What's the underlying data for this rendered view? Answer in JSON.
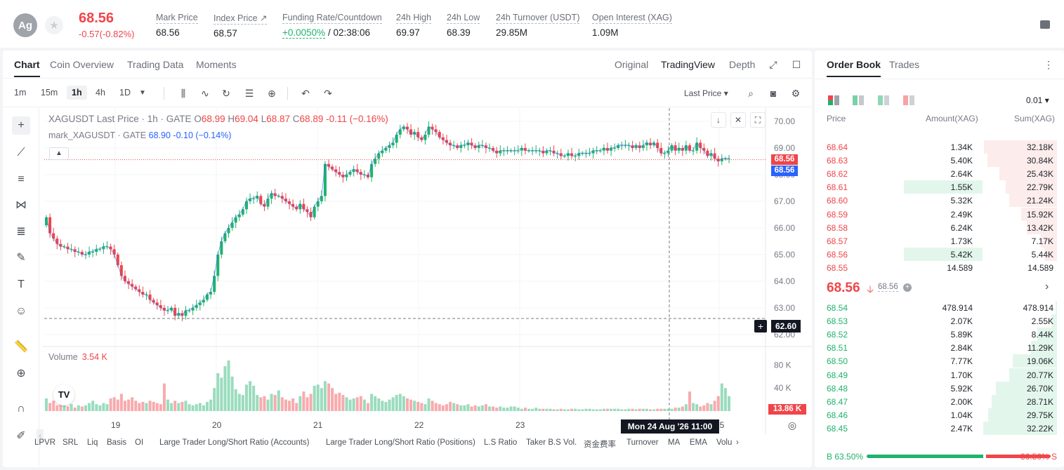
{
  "ticker": {
    "symbol_badge": "Ag",
    "star_icon": "star-icon",
    "last_price": "68.56",
    "change": "-0.57(-0.82%)",
    "stats": [
      {
        "label": "Mark Price",
        "value": "68.56"
      },
      {
        "label": "Index Price ↗",
        "value": "68.57"
      },
      {
        "label": "Funding Rate/Countdown",
        "value_pos": "+0.0050%",
        "value": " / 02:38:06"
      },
      {
        "label": "24h High",
        "value": "69.97"
      },
      {
        "label": "24h Low",
        "value": "68.39"
      },
      {
        "label": "24h Turnover (USDT)",
        "value": "29.85M"
      },
      {
        "label": "Open Interest (XAG)",
        "value": "1.09M"
      }
    ]
  },
  "chart_tabs": [
    "Chart",
    "Coin Overview",
    "Trading Data",
    "Moments"
  ],
  "view_tabs": [
    "Original",
    "TradingView",
    "Depth"
  ],
  "timeframes": [
    "1m",
    "15m",
    "1h",
    "4h",
    "1D"
  ],
  "price_source": "Last Price",
  "legend": {
    "main": "XAGUSDT Last Price · 1h · GATE",
    "o_label": "O",
    "o": "68.99",
    "h_label": "H",
    "h": "69.04",
    "l_label": "L",
    "l": "68.87",
    "c_label": "C",
    "c": "68.89",
    "chg": "-0.11 (−0.16%)",
    "mark": "mark_XAGUSDT · GATE",
    "mark_val": "68.90",
    "mark_chg": "-0.10 (−0.14%)"
  },
  "volume_legend": {
    "label": "Volume",
    "value": "3.54 K"
  },
  "tags": {
    "last": "68.56",
    "mark": "68.56",
    "crosshair_price": "62.60",
    "crosshair_time": "Mon 24 Aug '26   11:00",
    "volume_last": "13.86 K"
  },
  "indicators": [
    "LPVR",
    "SRL",
    "Liq",
    "Basis",
    "OI",
    "Large Trader Long/Short Ratio (Accounts)",
    "Large Trader Long/Short Ratio (Positions)",
    "L.S Ratio",
    "Taker B.S Vol.",
    "资金费率",
    "Turnover",
    "MA",
    "EMA",
    "Volu"
  ],
  "chart_data": {
    "type": "candlestick",
    "title": "XAGUSDT Last Price · 1h · GATE",
    "ylim": [
      61.6,
      70.5
    ],
    "price_ticks": [
      "70.00",
      "69.00",
      "68.00",
      "67.00",
      "66.00",
      "65.00",
      "64.00",
      "63.00",
      "62.00"
    ],
    "volume_ticks": [
      "80 K",
      "40 K"
    ],
    "x_ticks": [
      "19",
      "20",
      "21",
      "22",
      "23",
      "25"
    ],
    "closes": [
      66.4,
      65.8,
      65.6,
      65.4,
      65.3,
      65.3,
      65.2,
      65.2,
      65.1,
      65.1,
      65.0,
      65.0,
      65.1,
      65.1,
      65.2,
      65.2,
      65.3,
      65.3,
      65.2,
      65.0,
      64.6,
      64.2,
      64.0,
      63.9,
      63.8,
      63.7,
      63.6,
      63.5,
      63.5,
      63.3,
      63.2,
      63.1,
      63.0,
      62.9,
      62.9,
      63.0,
      62.7,
      62.8,
      62.7,
      62.9,
      62.9,
      63.0,
      63.1,
      63.2,
      63.3,
      63.5,
      63.6,
      64.2,
      65.0,
      65.5,
      65.8,
      66.0,
      66.2,
      66.4,
      66.5,
      66.7,
      67.0,
      67.1,
      67.1,
      67.2,
      66.9,
      66.8,
      67.1,
      67.3,
      67.2,
      67.2,
      67.1,
      67.0,
      66.9,
      66.8,
      66.7,
      66.9,
      66.7,
      66.6,
      66.4,
      66.8,
      67.0,
      67.2,
      68.4,
      68.3,
      68.2,
      68.1,
      68.0,
      67.9,
      68.0,
      68.1,
      68.2,
      68.1,
      68.0,
      68.0,
      67.9,
      68.4,
      68.6,
      68.8,
      68.9,
      69.0,
      69.1,
      69.2,
      69.5,
      69.7,
      69.8,
      69.7,
      69.5,
      69.6,
      69.4,
      69.3,
      69.5,
      69.8,
      69.7,
      69.6,
      69.4,
      69.3,
      69.2,
      69.1,
      69.1,
      69.0,
      69.1,
      69.1,
      69.2,
      69.1,
      69.0,
      69.1,
      69.1,
      69.0,
      69.0,
      68.9,
      68.8,
      68.9,
      68.9,
      68.9,
      68.9,
      68.9,
      68.9,
      69.0,
      68.9,
      68.9,
      68.9,
      68.9,
      68.9,
      68.8,
      68.9,
      68.9,
      68.8,
      68.8,
      68.7,
      68.7,
      68.8,
      68.7,
      68.7,
      68.8,
      68.8,
      68.8,
      68.8,
      68.9,
      68.9,
      68.9,
      69.0,
      68.9,
      69.0,
      69.0,
      69.1,
      69.1,
      69.1,
      69.1,
      69.0,
      69.1,
      69.0,
      69.1,
      69.2,
      69.1,
      69.2,
      69.0,
      68.8,
      68.8,
      68.9,
      69.1,
      68.9,
      69.0,
      68.9,
      69.1,
      68.9,
      68.9,
      69.2,
      69.0,
      68.9,
      68.7,
      68.8,
      68.6,
      68.5,
      68.6,
      68.6,
      68.6
    ],
    "volumes_k": [
      22,
      14,
      18,
      10,
      12,
      14,
      8,
      12,
      6,
      10,
      8,
      10,
      14,
      18,
      12,
      10,
      14,
      12,
      22,
      24,
      20,
      30,
      18,
      20,
      24,
      18,
      14,
      16,
      14,
      18,
      16,
      14,
      12,
      48,
      20,
      14,
      18,
      14,
      16,
      18,
      12,
      10,
      12,
      14,
      10,
      16,
      20,
      40,
      66,
      58,
      78,
      88,
      60,
      38,
      30,
      28,
      46,
      52,
      44,
      28,
      24,
      26,
      20,
      30,
      28,
      36,
      24,
      20,
      18,
      22,
      14,
      26,
      34,
      24,
      30,
      44,
      46,
      40,
      52,
      48,
      40,
      30,
      32,
      28,
      24,
      20,
      22,
      24,
      26,
      20,
      14,
      30,
      26,
      22,
      18,
      16,
      20,
      24,
      28,
      30,
      26,
      22,
      20,
      18,
      16,
      14,
      12,
      22,
      18,
      14,
      12,
      10,
      12,
      16,
      14,
      12,
      10,
      10,
      12,
      8,
      10,
      8,
      10,
      12,
      8,
      8,
      6,
      8,
      6,
      6,
      8,
      8,
      6,
      4,
      6,
      4,
      4,
      6,
      4,
      4,
      4,
      4,
      3,
      3,
      4,
      3,
      3,
      4,
      4,
      3,
      3,
      4,
      4,
      3,
      3,
      3,
      4,
      4,
      4,
      4,
      4,
      3,
      3,
      4,
      4,
      3,
      4,
      4,
      4,
      3,
      3,
      4,
      4,
      4,
      4,
      4,
      6,
      6,
      8,
      12,
      34,
      14,
      12,
      8,
      10,
      14,
      12,
      18,
      26,
      48,
      40,
      26,
      18,
      14
    ]
  },
  "orderbook": {
    "tabs": [
      "Order Book",
      "Trades"
    ],
    "tick": "0.01",
    "columns": [
      "Price",
      "Amount(XAG)",
      "Sum(XAG)"
    ],
    "asks": [
      {
        "p": "68.64",
        "a": "1.34K",
        "s": "32.18K",
        "sum_frac": 0.98,
        "amt_frac": 0
      },
      {
        "p": "68.63",
        "a": "5.40K",
        "s": "30.84K",
        "sum_frac": 0.93,
        "amt_frac": 0
      },
      {
        "p": "68.62",
        "a": "2.64K",
        "s": "25.43K",
        "sum_frac": 0.77,
        "amt_frac": 0
      },
      {
        "p": "68.61",
        "a": "1.55K",
        "s": "22.79K",
        "sum_frac": 0.69,
        "amt_frac": 0.34
      },
      {
        "p": "68.60",
        "a": "5.32K",
        "s": "21.24K",
        "sum_frac": 0.64,
        "amt_frac": 0
      },
      {
        "p": "68.59",
        "a": "2.49K",
        "s": "15.92K",
        "sum_frac": 0.48,
        "amt_frac": 0
      },
      {
        "p": "68.58",
        "a": "6.24K",
        "s": "13.42K",
        "sum_frac": 0.41,
        "amt_frac": 0
      },
      {
        "p": "68.57",
        "a": "1.73K",
        "s": "7.17K",
        "sum_frac": 0.22,
        "amt_frac": 0
      },
      {
        "p": "68.56",
        "a": "5.42K",
        "s": "5.44K",
        "sum_frac": 0.17,
        "amt_frac": 0.34
      },
      {
        "p": "68.55",
        "a": "14.589",
        "s": "14.589",
        "sum_frac": 0,
        "amt_frac": 0
      }
    ],
    "mid": {
      "price": "68.56",
      "mark": "68.56"
    },
    "bids": [
      {
        "p": "68.54",
        "a": "478.914",
        "s": "478.914",
        "sum_frac": 0.02
      },
      {
        "p": "68.53",
        "a": "2.07K",
        "s": "2.55K",
        "sum_frac": 0.08
      },
      {
        "p": "68.52",
        "a": "5.89K",
        "s": "8.44K",
        "sum_frac": 0.26
      },
      {
        "p": "68.51",
        "a": "2.84K",
        "s": "11.29K",
        "sum_frac": 0.35
      },
      {
        "p": "68.50",
        "a": "7.77K",
        "s": "19.06K",
        "sum_frac": 0.59
      },
      {
        "p": "68.49",
        "a": "1.70K",
        "s": "20.77K",
        "sum_frac": 0.64
      },
      {
        "p": "68.48",
        "a": "5.92K",
        "s": "26.70K",
        "sum_frac": 0.82
      },
      {
        "p": "68.47",
        "a": "2.00K",
        "s": "28.71K",
        "sum_frac": 0.88
      },
      {
        "p": "68.46",
        "a": "1.04K",
        "s": "29.75K",
        "sum_frac": 0.92
      },
      {
        "p": "68.45",
        "a": "2.47K",
        "s": "32.22K",
        "sum_frac": 0.99
      }
    ],
    "ratio": {
      "buy_label": "B",
      "buy": "63.50%",
      "sell_label": "S",
      "sell": "36.50%",
      "buy_frac": 0.635
    }
  },
  "colors": {
    "up": "#20b26c",
    "down": "#ef454a",
    "mark_line": "#2962ff"
  }
}
